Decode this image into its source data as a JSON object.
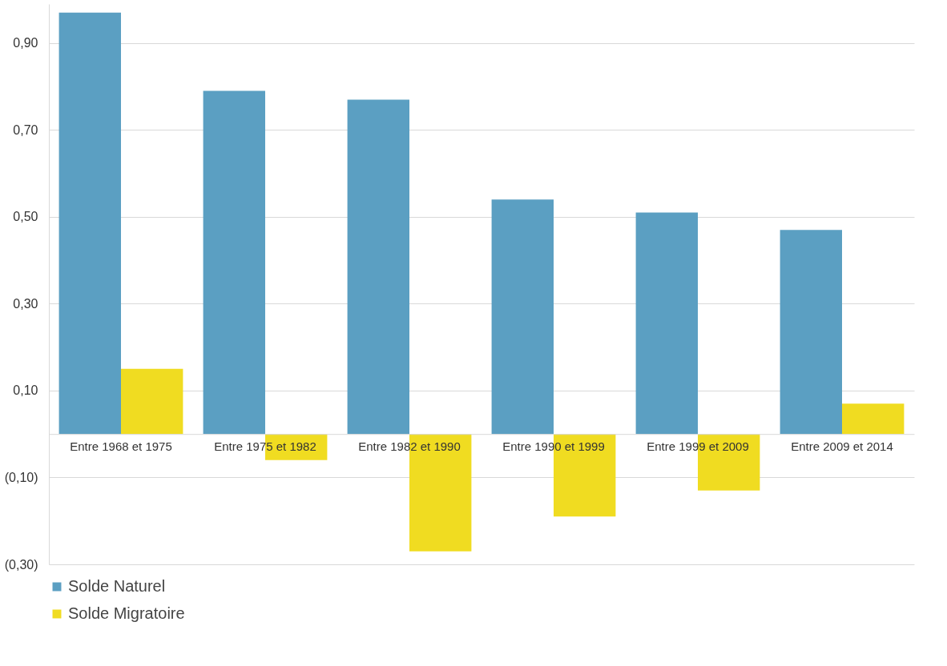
{
  "chart_data": {
    "type": "bar",
    "categories": [
      "Entre 1968 et 1975",
      "Entre 1975 et 1982",
      "Entre 1982 et 1990",
      "Entre 1990 et 1999",
      "Entre 1999 et 2009",
      "Entre 2009 et 2014"
    ],
    "series": [
      {
        "name": "Solde Naturel",
        "color": "#5b9fc2",
        "values": [
          0.97,
          0.79,
          0.77,
          0.54,
          0.51,
          0.47
        ]
      },
      {
        "name": "Solde Migratoire",
        "color": "#f0dc21",
        "values": [
          0.15,
          -0.06,
          -0.27,
          -0.19,
          -0.13,
          0.07
        ]
      }
    ],
    "ylim": [
      -0.3,
      0.99
    ],
    "yticks": [
      {
        "value": -0.3,
        "label": "(0,30)"
      },
      {
        "value": -0.1,
        "label": "(0,10)"
      },
      {
        "value": 0.1,
        "label": "0,10"
      },
      {
        "value": 0.3,
        "label": "0,30"
      },
      {
        "value": 0.5,
        "label": "0,50"
      },
      {
        "value": 0.7,
        "label": "0,70"
      },
      {
        "value": 0.9,
        "label": "0,90"
      }
    ],
    "grid": "y",
    "legend": "bottom"
  }
}
